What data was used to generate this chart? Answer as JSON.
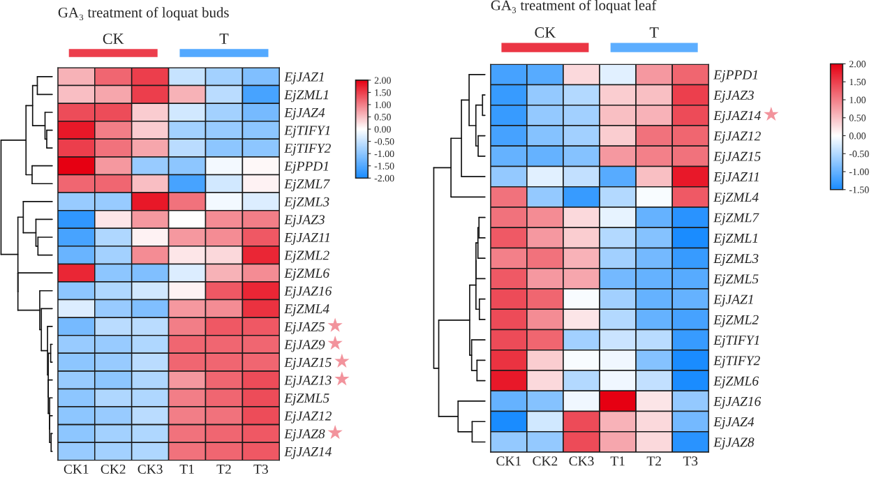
{
  "chart_data": [
    {
      "type": "heatmap",
      "title": "GA₃ treatment of loquat buds",
      "categories": [
        "CK1",
        "CK2",
        "CK3",
        "T1",
        "T2",
        "T3"
      ],
      "y_categories": [
        "EjJAZ1",
        "EjZML1",
        "EjJAZ4",
        "EjTIFY1",
        "EjTIFY2",
        "EjPPD1",
        "EjZML7",
        "EjZML3",
        "EjJAZ3",
        "EjJAZ11",
        "EjZML2",
        "EjZML6",
        "EjJAZ16",
        "EjZML4",
        "EjJAZ5 ★",
        "EjJAZ9 ★",
        "EjJAZ15 ★",
        "EjJAZ13 ★",
        "EjZML5",
        "EjJAZ12",
        "EjJAZ8 ★",
        "EjJAZ14"
      ],
      "cells": [
        [
          0.6,
          1.2,
          1.5,
          -0.5,
          -0.8,
          -1.1
        ],
        [
          0.5,
          0.7,
          1.5,
          0.6,
          -0.6,
          -1.6
        ],
        [
          1.4,
          1.4,
          0.4,
          -0.4,
          -0.8,
          -1.2
        ],
        [
          1.8,
          1.0,
          0.4,
          -0.8,
          -0.9,
          -1.0
        ],
        [
          1.5,
          1.1,
          0.7,
          -0.6,
          -1.0,
          -1.0
        ],
        [
          2.0,
          0.8,
          -0.9,
          -1.0,
          -0.1,
          0.05
        ],
        [
          1.2,
          1.2,
          0.5,
          -1.6,
          -0.4,
          0.1
        ],
        [
          -0.9,
          -0.9,
          1.8,
          1.1,
          -0.1,
          -0.3
        ],
        [
          -1.8,
          0.2,
          0.8,
          0.0,
          0.9,
          1.0
        ],
        [
          -1.6,
          -0.7,
          0.1,
          0.8,
          0.9,
          1.3
        ],
        [
          -1.3,
          -0.8,
          0.9,
          0.2,
          0.3,
          1.7
        ],
        [
          1.7,
          -1.0,
          -1.1,
          -0.3,
          0.6,
          0.9
        ],
        [
          -1.0,
          -0.7,
          -0.4,
          0.1,
          1.3,
          1.7
        ],
        [
          -0.3,
          -0.9,
          -1.1,
          0.8,
          0.9,
          1.6
        ],
        [
          -1.2,
          -0.6,
          -0.6,
          1.0,
          1.3,
          1.3
        ],
        [
          -0.9,
          -0.9,
          -0.7,
          1.2,
          1.2,
          1.2
        ],
        [
          -1.0,
          -0.9,
          -0.6,
          1.2,
          1.2,
          1.2
        ],
        [
          -0.9,
          -1.0,
          -0.7,
          0.8,
          1.2,
          1.4
        ],
        [
          -1.0,
          -0.7,
          -0.7,
          1.0,
          1.2,
          1.4
        ],
        [
          -1.0,
          -0.9,
          -0.6,
          1.0,
          1.1,
          1.4
        ],
        [
          -1.0,
          -0.8,
          -0.7,
          1.1,
          1.2,
          1.3
        ],
        [
          -0.9,
          -0.8,
          -0.7,
          1.1,
          1.2,
          1.3
        ]
      ],
      "clim": [
        -2,
        2
      ],
      "cticks": [
        {
          "value": 2,
          "label": "2.00"
        },
        {
          "value": 1.5,
          "label": "1.50"
        },
        {
          "value": 1,
          "label": "1.00"
        },
        {
          "value": 0.5,
          "label": "0.50"
        },
        {
          "value": 0,
          "label": "0.00"
        },
        {
          "value": -0.5,
          "label": "-0.50"
        },
        {
          "value": -1,
          "label": "-1.00"
        },
        {
          "value": -1.5,
          "label": "-1.50"
        },
        {
          "value": -2,
          "label": "-2.00"
        }
      ],
      "annotations": [
        "CK",
        "T"
      ]
    },
    {
      "type": "heatmap",
      "title": "GA₃ treatment of loquat leaf",
      "categories": [
        "CK1",
        "CK2",
        "CK3",
        "T1",
        "T2",
        "T3"
      ],
      "y_categories": [
        "EjPPD1",
        "EjJAZ3",
        "EjJAZ14 ★",
        "EjJAZ12",
        "EjJAZ15",
        "EjJAZ11",
        "EjZML4",
        "EjZML7",
        "EjZML1",
        "EjZML3",
        "EjZML5",
        "EjJAZ1",
        "EjZML2",
        "EjTIFY1",
        "EjTIFY2",
        "EjZML6",
        "EjJAZ16",
        "EjJAZ4",
        "EjJAZ8"
      ],
      "cells": [
        [
          -1.2,
          -1.1,
          0.3,
          -0.2,
          0.8,
          1.2
        ],
        [
          -1.3,
          -0.7,
          -0.5,
          0.4,
          0.5,
          1.5
        ],
        [
          -1.3,
          -0.7,
          -0.6,
          0.5,
          0.6,
          1.4
        ],
        [
          -1.2,
          -0.8,
          -0.6,
          0.4,
          1.1,
          1.2
        ],
        [
          -1.0,
          -1.0,
          -0.8,
          0.8,
          1.0,
          1.1
        ],
        [
          -0.7,
          -0.2,
          -0.4,
          -1.1,
          0.5,
          1.8
        ],
        [
          1.1,
          -0.7,
          -1.3,
          -0.5,
          -0.05,
          1.3
        ],
        [
          1.1,
          0.9,
          0.3,
          -0.15,
          -1.0,
          -1.4
        ],
        [
          1.3,
          0.8,
          0.4,
          -0.5,
          -0.8,
          -1.5
        ],
        [
          1.0,
          1.1,
          0.6,
          -0.6,
          -0.9,
          -1.3
        ],
        [
          1.3,
          0.8,
          0.7,
          -0.9,
          -1.0,
          -1.1
        ],
        [
          1.4,
          1.2,
          -0.05,
          -0.6,
          -1.0,
          -1.0
        ],
        [
          1.4,
          0.9,
          0.2,
          -0.5,
          -1.0,
          -1.2
        ],
        [
          1.4,
          1.2,
          -0.6,
          -0.35,
          -0.45,
          -1.3
        ],
        [
          1.6,
          0.4,
          -0.05,
          -0.1,
          -0.8,
          -1.5
        ],
        [
          1.8,
          0.3,
          -0.5,
          -0.1,
          -0.4,
          -1.5
        ],
        [
          -1.0,
          -0.8,
          -0.1,
          2.0,
          0.2,
          -0.7
        ],
        [
          -1.5,
          -0.3,
          1.4,
          0.6,
          0.3,
          -0.9
        ],
        [
          -0.7,
          -0.7,
          1.4,
          0.7,
          0.3,
          -1.4
        ]
      ],
      "clim": [
        -1.5,
        2
      ],
      "cticks": [
        {
          "value": 2,
          "label": "2.00"
        },
        {
          "value": 1.5,
          "label": "1.50"
        },
        {
          "value": 1,
          "label": "1.00"
        },
        {
          "value": 0.5,
          "label": "0.50"
        },
        {
          "value": 0,
          "label": "0.00"
        },
        {
          "value": -0.5,
          "label": "-0.50"
        },
        {
          "value": -1,
          "label": "-1.00"
        },
        {
          "value": -1.5,
          "label": "-1.50"
        }
      ],
      "annotations": [
        "CK",
        "T"
      ]
    }
  ]
}
